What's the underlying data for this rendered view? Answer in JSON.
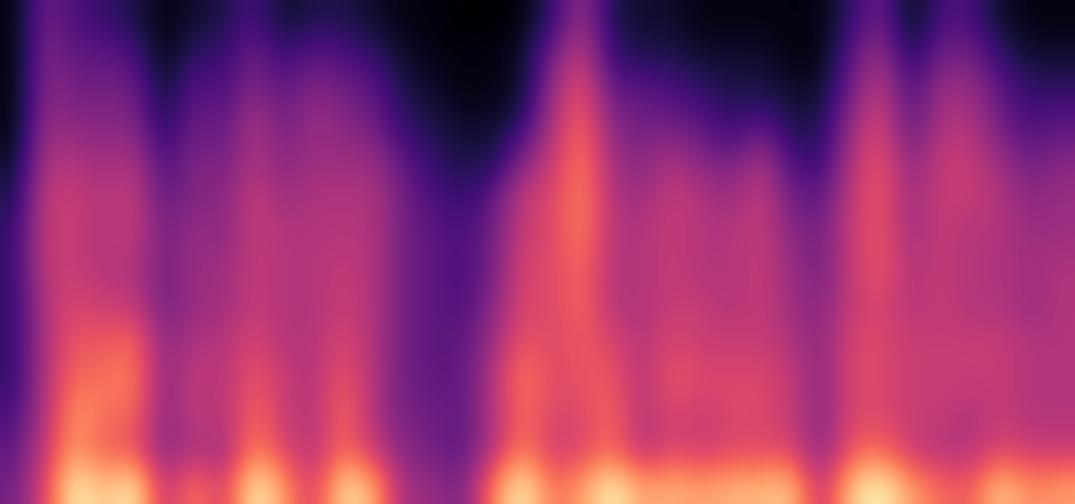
{
  "chart_data": {
    "type": "heatmap",
    "color": "magma",
    "tick_labels": false,
    "cells": [
      [
        0.05,
        0.35,
        0.25,
        0.2,
        0.15,
        0.05,
        0.1,
        0.15,
        0.25,
        0.1,
        0.15,
        0.15,
        0.1,
        0.05,
        0.05,
        0.02,
        0.02,
        0.05,
        0.2,
        0.45,
        0.15,
        0.1,
        0.1,
        0.05,
        0.05,
        0.05,
        0.05,
        0.05,
        0.2,
        0.35,
        0.05,
        0.25,
        0.25,
        0.1,
        0.05,
        0.05
      ],
      [
        0.05,
        0.4,
        0.3,
        0.3,
        0.25,
        0.05,
        0.2,
        0.2,
        0.35,
        0.2,
        0.3,
        0.25,
        0.2,
        0.1,
        0.05,
        0.05,
        0.05,
        0.1,
        0.35,
        0.55,
        0.2,
        0.15,
        0.15,
        0.1,
        0.1,
        0.1,
        0.05,
        0.05,
        0.3,
        0.45,
        0.15,
        0.35,
        0.35,
        0.2,
        0.1,
        0.1
      ],
      [
        0.05,
        0.4,
        0.35,
        0.35,
        0.35,
        0.1,
        0.3,
        0.25,
        0.4,
        0.3,
        0.4,
        0.35,
        0.3,
        0.15,
        0.1,
        0.05,
        0.05,
        0.1,
        0.45,
        0.65,
        0.3,
        0.3,
        0.25,
        0.2,
        0.15,
        0.15,
        0.1,
        0.1,
        0.35,
        0.55,
        0.25,
        0.45,
        0.45,
        0.3,
        0.2,
        0.2
      ],
      [
        0.05,
        0.45,
        0.4,
        0.4,
        0.4,
        0.15,
        0.35,
        0.3,
        0.5,
        0.35,
        0.45,
        0.4,
        0.35,
        0.2,
        0.15,
        0.1,
        0.1,
        0.2,
        0.5,
        0.7,
        0.4,
        0.35,
        0.35,
        0.3,
        0.2,
        0.3,
        0.15,
        0.15,
        0.45,
        0.6,
        0.3,
        0.5,
        0.5,
        0.35,
        0.25,
        0.3
      ],
      [
        0.1,
        0.5,
        0.5,
        0.45,
        0.5,
        0.25,
        0.4,
        0.35,
        0.5,
        0.4,
        0.45,
        0.45,
        0.45,
        0.3,
        0.2,
        0.15,
        0.15,
        0.4,
        0.55,
        0.75,
        0.45,
        0.4,
        0.5,
        0.4,
        0.35,
        0.5,
        0.25,
        0.2,
        0.5,
        0.65,
        0.4,
        0.55,
        0.55,
        0.45,
        0.35,
        0.4
      ],
      [
        0.15,
        0.55,
        0.55,
        0.5,
        0.55,
        0.3,
        0.4,
        0.4,
        0.55,
        0.45,
        0.5,
        0.5,
        0.5,
        0.35,
        0.25,
        0.2,
        0.3,
        0.55,
        0.6,
        0.75,
        0.5,
        0.45,
        0.55,
        0.5,
        0.45,
        0.55,
        0.35,
        0.3,
        0.55,
        0.65,
        0.45,
        0.55,
        0.55,
        0.5,
        0.4,
        0.45
      ],
      [
        0.2,
        0.55,
        0.55,
        0.5,
        0.55,
        0.35,
        0.45,
        0.4,
        0.55,
        0.5,
        0.5,
        0.5,
        0.5,
        0.35,
        0.3,
        0.25,
        0.35,
        0.55,
        0.6,
        0.75,
        0.5,
        0.5,
        0.55,
        0.5,
        0.5,
        0.55,
        0.4,
        0.35,
        0.55,
        0.65,
        0.45,
        0.55,
        0.5,
        0.5,
        0.45,
        0.45
      ],
      [
        0.2,
        0.55,
        0.55,
        0.5,
        0.5,
        0.35,
        0.45,
        0.45,
        0.55,
        0.5,
        0.5,
        0.55,
        0.5,
        0.35,
        0.3,
        0.25,
        0.35,
        0.6,
        0.6,
        0.7,
        0.5,
        0.5,
        0.55,
        0.5,
        0.5,
        0.55,
        0.45,
        0.35,
        0.55,
        0.65,
        0.5,
        0.55,
        0.5,
        0.5,
        0.45,
        0.5
      ],
      [
        0.2,
        0.5,
        0.6,
        0.55,
        0.55,
        0.35,
        0.45,
        0.45,
        0.55,
        0.5,
        0.5,
        0.55,
        0.5,
        0.35,
        0.3,
        0.25,
        0.4,
        0.6,
        0.6,
        0.7,
        0.5,
        0.5,
        0.55,
        0.55,
        0.5,
        0.55,
        0.45,
        0.4,
        0.55,
        0.6,
        0.5,
        0.55,
        0.5,
        0.5,
        0.45,
        0.5
      ],
      [
        0.2,
        0.5,
        0.65,
        0.65,
        0.7,
        0.4,
        0.5,
        0.5,
        0.6,
        0.5,
        0.5,
        0.6,
        0.5,
        0.35,
        0.3,
        0.3,
        0.45,
        0.65,
        0.6,
        0.65,
        0.6,
        0.5,
        0.6,
        0.55,
        0.55,
        0.55,
        0.5,
        0.4,
        0.6,
        0.6,
        0.55,
        0.55,
        0.55,
        0.55,
        0.5,
        0.5
      ],
      [
        0.2,
        0.5,
        0.7,
        0.7,
        0.75,
        0.4,
        0.55,
        0.5,
        0.65,
        0.55,
        0.5,
        0.65,
        0.5,
        0.35,
        0.3,
        0.3,
        0.5,
        0.75,
        0.6,
        0.65,
        0.65,
        0.5,
        0.65,
        0.6,
        0.6,
        0.6,
        0.55,
        0.4,
        0.6,
        0.6,
        0.55,
        0.55,
        0.55,
        0.55,
        0.5,
        0.5
      ],
      [
        0.25,
        0.5,
        0.8,
        0.7,
        0.7,
        0.4,
        0.55,
        0.5,
        0.7,
        0.55,
        0.5,
        0.7,
        0.5,
        0.35,
        0.35,
        0.3,
        0.5,
        0.7,
        0.6,
        0.6,
        0.7,
        0.5,
        0.6,
        0.55,
        0.6,
        0.6,
        0.55,
        0.4,
        0.6,
        0.6,
        0.55,
        0.55,
        0.5,
        0.55,
        0.5,
        0.5
      ],
      [
        0.3,
        0.55,
        0.8,
        0.65,
        0.65,
        0.4,
        0.5,
        0.45,
        0.75,
        0.6,
        0.5,
        0.7,
        0.55,
        0.4,
        0.35,
        0.3,
        0.5,
        0.75,
        0.55,
        0.6,
        0.7,
        0.5,
        0.6,
        0.55,
        0.6,
        0.6,
        0.6,
        0.4,
        0.65,
        0.7,
        0.55,
        0.5,
        0.5,
        0.6,
        0.55,
        0.55
      ],
      [
        0.35,
        0.6,
        1.0,
        0.85,
        1.0,
        0.5,
        0.75,
        0.55,
        1.0,
        0.8,
        0.55,
        0.95,
        0.85,
        0.45,
        0.45,
        0.35,
        0.75,
        1.0,
        0.7,
        0.8,
        1.0,
        0.8,
        0.85,
        0.8,
        0.85,
        0.85,
        0.9,
        0.5,
        0.9,
        1.0,
        0.8,
        0.7,
        0.65,
        0.9,
        0.75,
        0.8
      ]
    ]
  }
}
